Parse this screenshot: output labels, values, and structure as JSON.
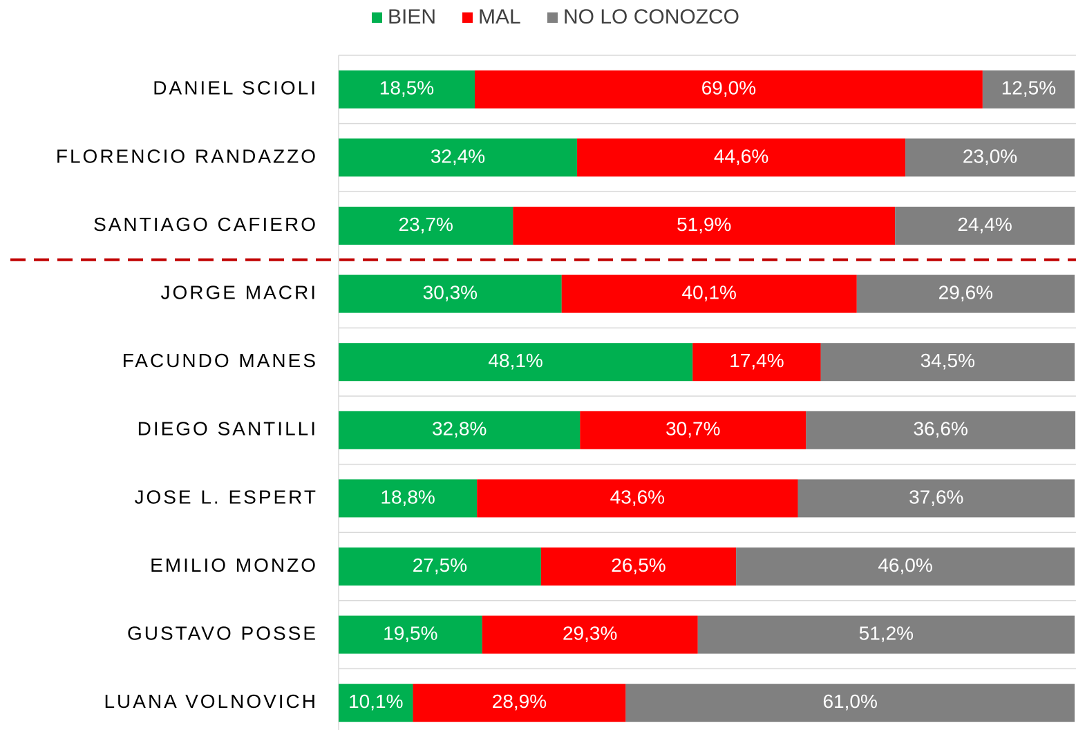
{
  "chart_data": {
    "type": "stacked-barh",
    "categories": [
      "DANIEL SCIOLI",
      "FLORENCIO RANDAZZO",
      "SANTIAGO CAFIERO",
      "JORGE MACRI",
      "FACUNDO MANES",
      "DIEGO SANTILLI",
      "JOSE L. ESPERT",
      "EMILIO MONZO",
      "GUSTAVO POSSE",
      "LUANA VOLNOVICH"
    ],
    "series": [
      {
        "name": "BIEN",
        "color": "#00b050",
        "values": [
          18.5,
          32.4,
          23.7,
          30.3,
          48.1,
          32.8,
          18.8,
          27.5,
          19.5,
          10.1
        ],
        "value_labels": [
          "18,5%",
          "32,4%",
          "23,7%",
          "30,3%",
          "48,1%",
          "32,8%",
          "18,8%",
          "27,5%",
          "19,5%",
          "10,1%"
        ]
      },
      {
        "name": "MAL",
        "color": "#ff0000",
        "values": [
          69.0,
          44.6,
          51.9,
          40.1,
          17.4,
          30.7,
          43.6,
          26.5,
          29.3,
          28.9
        ],
        "value_labels": [
          "69,0%",
          "44,6%",
          "51,9%",
          "40,1%",
          "17,4%",
          "30,7%",
          "43,6%",
          "26,5%",
          "29,3%",
          "28,9%"
        ]
      },
      {
        "name": "NO LO CONOZCO",
        "color": "#808080",
        "values": [
          12.5,
          23.0,
          24.4,
          29.6,
          34.5,
          36.6,
          37.6,
          46.0,
          51.2,
          61.0
        ],
        "value_labels": [
          "12,5%",
          "23,0%",
          "24,4%",
          "29,6%",
          "34,5%",
          "36,6%",
          "37,6%",
          "46,0%",
          "51,2%",
          "61,0%"
        ]
      }
    ],
    "xlim": [
      0,
      100
    ],
    "legend": "top"
  }
}
